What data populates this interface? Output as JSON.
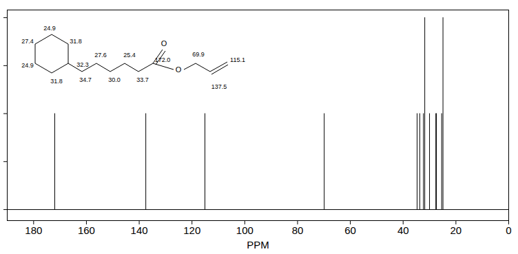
{
  "chart_data": {
    "type": "stick",
    "x_label": "PPM",
    "xlim": [
      190,
      0
    ],
    "xticks": [
      180,
      160,
      140,
      120,
      100,
      80,
      60,
      40,
      20,
      0
    ],
    "ylim": [
      -0.23,
      4.16
    ],
    "yticks": [
      0,
      1,
      2,
      3,
      4
    ],
    "tick_labels": "x",
    "color": "#000000",
    "baseline": 0,
    "x": [
      172.0,
      137.5,
      115.1,
      69.9,
      34.7,
      33.7,
      32.3,
      31.8,
      30.0,
      27.6,
      27.4,
      25.4,
      24.9
    ],
    "values": [
      2,
      2,
      2,
      2,
      2,
      2,
      2,
      4,
      2,
      2,
      2,
      2,
      4
    ],
    "structure_labels": [
      "24.9",
      "27.4",
      "31.8",
      "24.9",
      "32.3",
      "31.8",
      "34.7",
      "27.6",
      "30.0",
      "25.4",
      "33.7",
      "172.0",
      "69.9",
      "115.1",
      "137.5"
    ],
    "atom_labels": [
      "O",
      "O"
    ]
  }
}
